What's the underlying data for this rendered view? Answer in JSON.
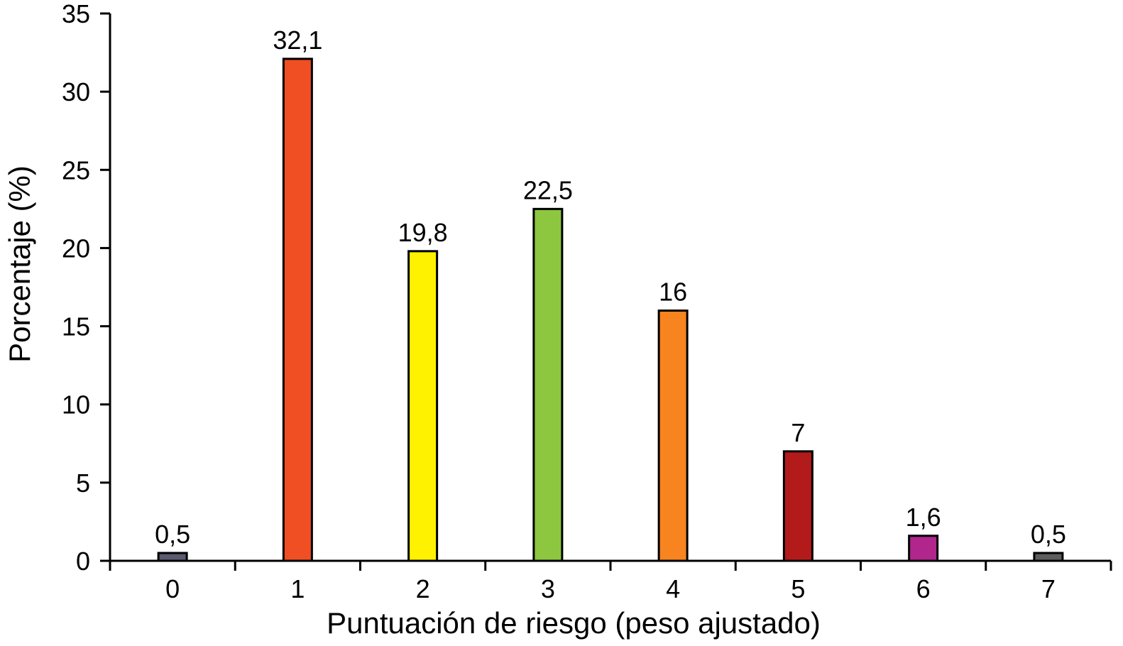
{
  "chart_data": {
    "type": "bar",
    "title": "",
    "xlabel": "Puntuación de riesgo (peso ajustado)",
    "ylabel": "Porcentaje (%)",
    "categories": [
      "0",
      "1",
      "2",
      "3",
      "4",
      "5",
      "6",
      "7"
    ],
    "values": [
      0.5,
      32.1,
      19.8,
      22.5,
      16,
      7,
      1.6,
      0.5
    ],
    "value_labels": [
      "0,5",
      "32,1",
      "19,8",
      "22,5",
      "16",
      "7",
      "1,6",
      "0,5"
    ],
    "bar_colors": [
      "#5a5a70",
      "#f04e23",
      "#fff200",
      "#8dc63f",
      "#f7841f",
      "#b31b1b",
      "#b0268d",
      "#5d5d5d"
    ],
    "ylim": [
      0,
      35
    ],
    "yticks": [
      0,
      5,
      10,
      15,
      20,
      25,
      30,
      35
    ],
    "ytick_labels": [
      "0",
      "5",
      "10",
      "15",
      "20",
      "25",
      "30",
      "35"
    ],
    "grid": false,
    "legend": "none"
  }
}
